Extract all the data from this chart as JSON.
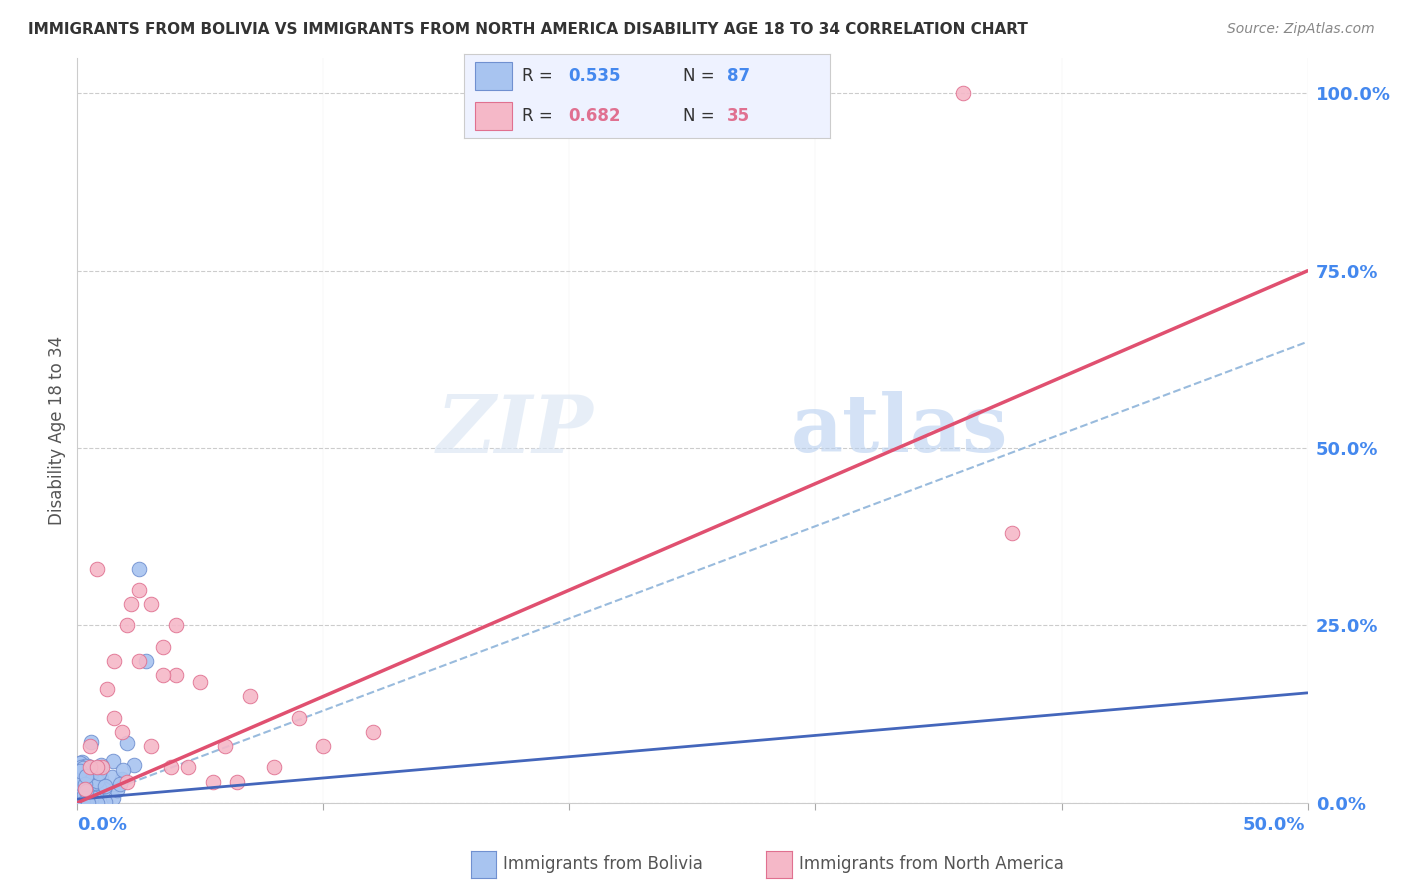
{
  "title": "IMMIGRANTS FROM BOLIVIA VS IMMIGRANTS FROM NORTH AMERICA DISABILITY AGE 18 TO 34 CORRELATION CHART",
  "source": "Source: ZipAtlas.com",
  "ylabel": "Disability Age 18 to 34",
  "ytick_values": [
    0,
    25,
    50,
    75,
    100
  ],
  "xlim": [
    0,
    50
  ],
  "ylim": [
    0,
    105
  ],
  "bolivia_color": "#a8c4f0",
  "bolivia_edge_color": "#7090d0",
  "north_america_color": "#f5b8c8",
  "north_america_edge_color": "#e07090",
  "bolivia_R": 0.535,
  "bolivia_N": 87,
  "north_america_R": 0.682,
  "north_america_N": 35,
  "regression_bolivia_color": "#4466bb",
  "regression_north_america_color": "#e05070",
  "regression_diagonal_color": "#99bbdd",
  "watermark_zip": "ZIP",
  "watermark_atlas": "atlas",
  "background_color": "#ffffff",
  "grid_color": "#cccccc",
  "title_color": "#333333",
  "axis_label_color": "#4488ee",
  "legend_bg": "#eef2ff",
  "legend_border": "#cccccc"
}
